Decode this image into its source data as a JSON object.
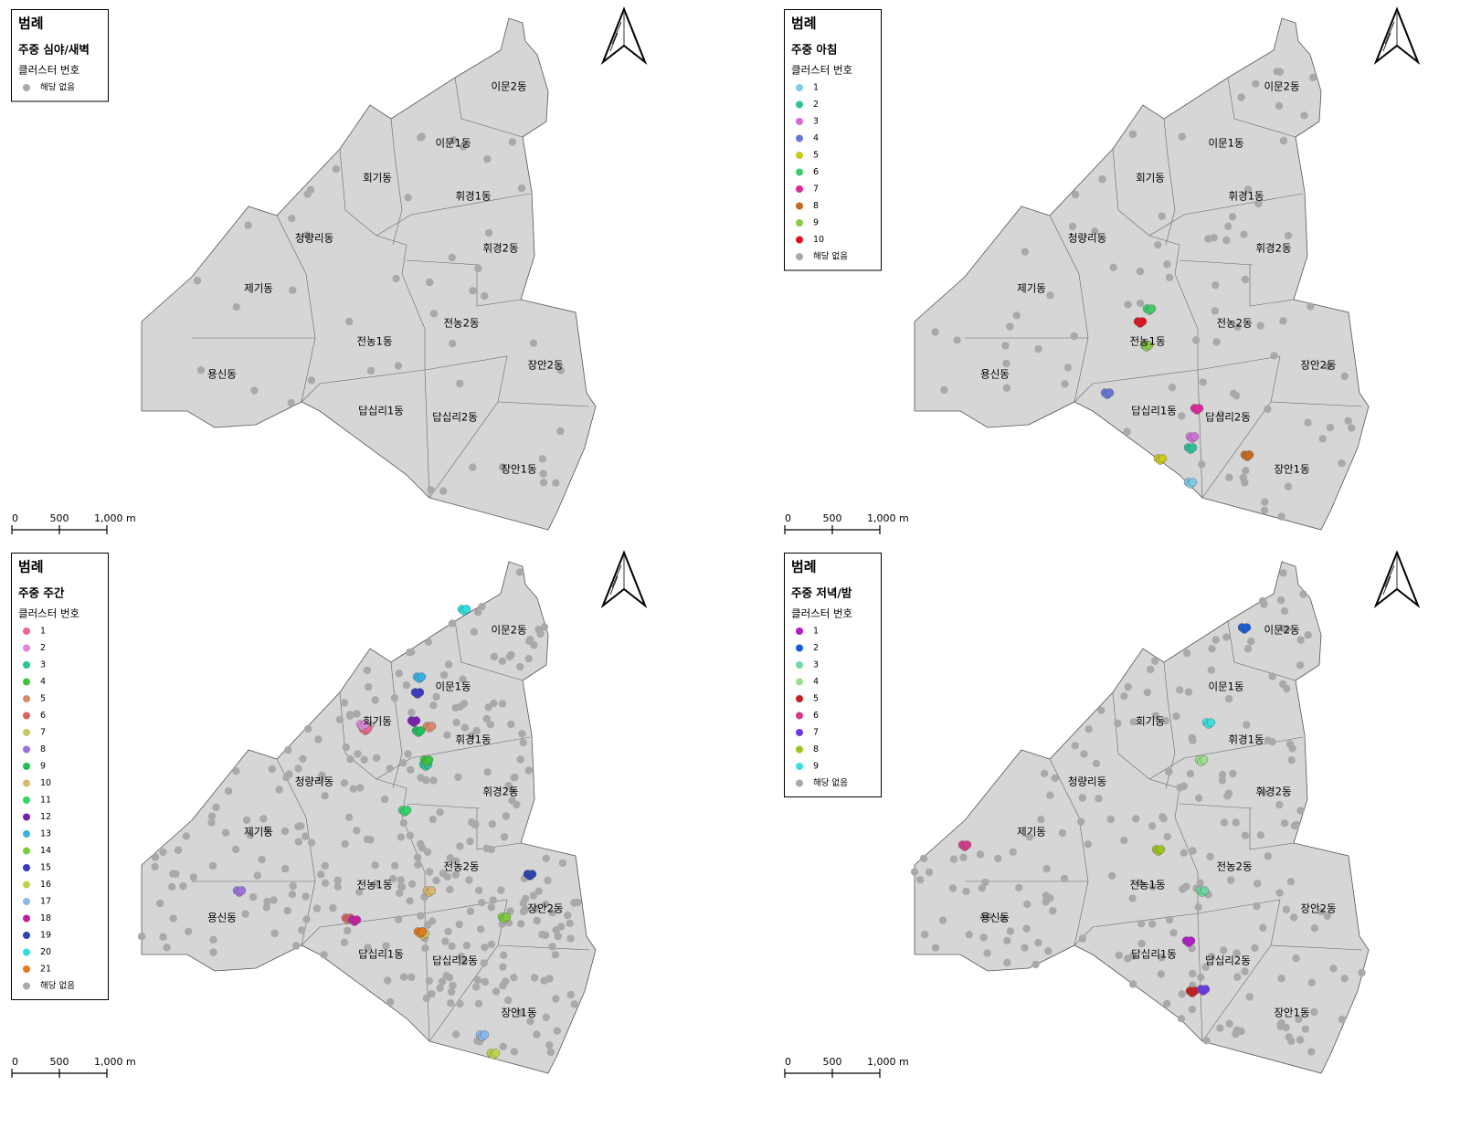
{
  "districts": [
    "이문2동",
    "이문1동",
    "회기동",
    "휘경1동",
    "청량리동",
    "휘경2동",
    "제기동",
    "전농2동",
    "전농1동",
    "장안2동",
    "용신동",
    "답십리1동",
    "답십리2동",
    "장안1동"
  ],
  "scale_labels": [
    "0",
    "500",
    "1,000 m"
  ],
  "panels": [
    {
      "legend_title": "범례",
      "subtitle": "주중 심야/새벽",
      "legend_heading": "클러스터 번호",
      "items": [
        {
          "label": "해당 없음",
          "color": "#a9a9a9"
        }
      ]
    },
    {
      "legend_title": "범례",
      "subtitle": "주중 아침",
      "legend_heading": "클러스터 번호",
      "items": [
        {
          "label": "1",
          "color": "#7ecbe6"
        },
        {
          "label": "2",
          "color": "#2fbf9a"
        },
        {
          "label": "3",
          "color": "#d36fd9"
        },
        {
          "label": "4",
          "color": "#6677d6"
        },
        {
          "label": "5",
          "color": "#c9c91e"
        },
        {
          "label": "6",
          "color": "#40cc6a"
        },
        {
          "label": "7",
          "color": "#e0289e"
        },
        {
          "label": "8",
          "color": "#c46a22"
        },
        {
          "label": "9",
          "color": "#8cc94a"
        },
        {
          "label": "10",
          "color": "#e0141c"
        },
        {
          "label": "해당 없음",
          "color": "#a9a9a9"
        }
      ]
    },
    {
      "legend_title": "범례",
      "subtitle": "주중 주간",
      "legend_heading": "클러스터 번호",
      "items": [
        {
          "label": "1",
          "color": "#e8678a"
        },
        {
          "label": "2",
          "color": "#dd88dd"
        },
        {
          "label": "3",
          "color": "#28c49a"
        },
        {
          "label": "4",
          "color": "#3ac43a"
        },
        {
          "label": "5",
          "color": "#d98a6a"
        },
        {
          "label": "6",
          "color": "#d96060"
        },
        {
          "label": "7",
          "color": "#c9c660"
        },
        {
          "label": "8",
          "color": "#9a72d8"
        },
        {
          "label": "9",
          "color": "#1fbf5a"
        },
        {
          "label": "10",
          "color": "#d9b870"
        },
        {
          "label": "11",
          "color": "#34d66a"
        },
        {
          "label": "12",
          "color": "#7a1fb0"
        },
        {
          "label": "13",
          "color": "#3ab0e0"
        },
        {
          "label": "14",
          "color": "#7ccc3c"
        },
        {
          "label": "15",
          "color": "#3a3ac4"
        },
        {
          "label": "16",
          "color": "#bcd64a"
        },
        {
          "label": "17",
          "color": "#8ab8ec"
        },
        {
          "label": "18",
          "color": "#c41ea0"
        },
        {
          "label": "19",
          "color": "#2a44b0"
        },
        {
          "label": "20",
          "color": "#2ae0e0"
        },
        {
          "label": "21",
          "color": "#e07a1a"
        },
        {
          "label": "해당 없음",
          "color": "#a9a9a9"
        }
      ]
    },
    {
      "legend_title": "범례",
      "subtitle": "주중 저녁/밤",
      "legend_heading": "클러스터 번호",
      "items": [
        {
          "label": "1",
          "color": "#b01ec4"
        },
        {
          "label": "2",
          "color": "#1a5ad8"
        },
        {
          "label": "3",
          "color": "#6ed8a0"
        },
        {
          "label": "4",
          "color": "#9ae08a"
        },
        {
          "label": "5",
          "color": "#c42020"
        },
        {
          "label": "6",
          "color": "#d83a8a"
        },
        {
          "label": "7",
          "color": "#6a3ae0"
        },
        {
          "label": "8",
          "color": "#9cc41e"
        },
        {
          "label": "9",
          "color": "#3ae0e0"
        },
        {
          "label": "해당 없음",
          "color": "#a9a9a9"
        }
      ]
    }
  ]
}
